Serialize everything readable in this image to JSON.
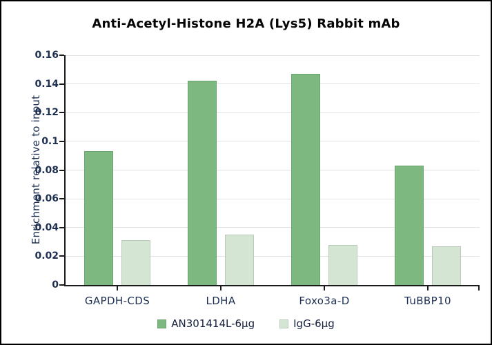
{
  "title": "Anti-Acetyl-Histone H2A (Lys5) Rabbit mAb",
  "chart_data": {
    "type": "bar",
    "title": "Anti-Acetyl-Histone H2A (Lys5) Rabbit mAb",
    "xlabel": "",
    "ylabel": "Enrichment relative to input",
    "categories": [
      "GAPDH-CDS",
      "LDHA",
      "Foxo3a-D",
      "TuBBP10"
    ],
    "series": [
      {
        "name": "AN301414L-6µg",
        "values": [
          0.093,
          0.142,
          0.147,
          0.083
        ],
        "color": "#7cb87f",
        "border_color": "#6aa56f"
      },
      {
        "name": "IgG-6µg",
        "values": [
          0.031,
          0.035,
          0.028,
          0.027
        ],
        "color": "#d5e5d4",
        "border_color": "#b8cab8"
      }
    ],
    "ylim": [
      0,
      0.16
    ],
    "ytick_labels": [
      "0",
      "0.02",
      "0.04",
      "0.06",
      "0.08",
      "0.1",
      "0.12",
      "0.14",
      "0.16"
    ],
    "grid": true,
    "legend_position": "bottom"
  },
  "colors": {
    "axis": "#1a1a1a",
    "grid": "#e3e3e3",
    "axis_text": "#1d2f51",
    "title_text": "#060606",
    "background": "#ffffff",
    "frame": "#000000"
  }
}
